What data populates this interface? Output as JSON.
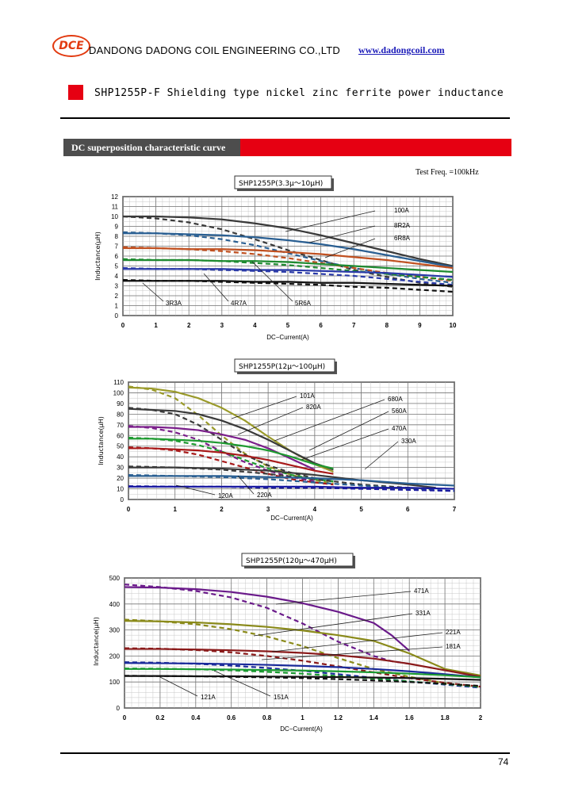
{
  "header": {
    "logo_text": "DCE",
    "company": "DANDONG DADONG COIL ENGINEERING CO.,LTD",
    "website": "www.dadongcoil.com"
  },
  "product_title": "SHP1255P-F  Shielding type nickel zinc ferrite power inductance",
  "section_title": "DC superposition characteristic curve",
  "test_freq": "Test  Freq. =100kHz",
  "page_number": "74",
  "colors": {
    "red": "#e60012",
    "dark": "#4d4d4d"
  },
  "chart_data": [
    {
      "type": "line",
      "title": "SHP1255P(3.3μ～10μH)",
      "xlabel": "DC−Current(A)",
      "ylabel": "Inductance(μH)",
      "xlim": [
        0,
        10
      ],
      "ylim": [
        0,
        12
      ],
      "xticks": [
        "0",
        "1",
        "2",
        "3",
        "4",
        "5",
        "6",
        "7",
        "8",
        "9",
        "10"
      ],
      "yticks": [
        "0",
        "1",
        "2",
        "3",
        "4",
        "5",
        "6",
        "7",
        "8",
        "9",
        "10",
        "11",
        "12"
      ],
      "series": [
        {
          "name": "100A",
          "color": "#3a3a3a",
          "x": [
            0,
            1,
            2,
            3,
            4,
            5,
            6,
            7,
            8,
            9,
            10
          ],
          "solid": [
            10,
            10,
            9.9,
            9.7,
            9.3,
            8.8,
            8.1,
            7.3,
            6.5,
            5.7,
            5.0
          ],
          "dashed": [
            10,
            9.8,
            9.4,
            8.7,
            7.7,
            6.6,
            5.6,
            4.6,
            3.9,
            3.3,
            2.9
          ]
        },
        {
          "name": "8R2A",
          "color": "#2a5f92",
          "x": [
            0,
            1,
            2,
            3,
            4,
            5,
            6,
            7,
            8,
            9,
            10
          ],
          "solid": [
            8.3,
            8.3,
            8.2,
            8.1,
            7.9,
            7.6,
            7.2,
            6.7,
            6.1,
            5.5,
            4.9
          ],
          "dashed": [
            8.4,
            8.3,
            8.1,
            7.7,
            7.1,
            6.3,
            5.5,
            4.8,
            4.2,
            3.7,
            3.3
          ]
        },
        {
          "name": "6R8A",
          "color": "#c05020",
          "x": [
            0,
            1,
            2,
            3,
            4,
            5,
            6,
            7,
            8,
            9,
            10
          ],
          "solid": [
            6.8,
            6.8,
            6.7,
            6.7,
            6.6,
            6.4,
            6.2,
            5.9,
            5.6,
            5.2,
            4.8
          ],
          "dashed": [
            6.9,
            6.8,
            6.7,
            6.5,
            6.2,
            5.8,
            5.3,
            4.8,
            4.3,
            3.9,
            3.5
          ]
        },
        {
          "name": "5R6A",
          "color": "#1e8a30",
          "x": [
            0,
            1,
            2,
            3,
            4,
            5,
            6,
            7,
            8,
            9,
            10
          ],
          "solid": [
            5.6,
            5.6,
            5.6,
            5.5,
            5.5,
            5.4,
            5.2,
            5.0,
            4.8,
            4.6,
            4.4
          ],
          "dashed": [
            5.7,
            5.6,
            5.6,
            5.5,
            5.3,
            5.1,
            4.8,
            4.5,
            4.2,
            3.9,
            3.6
          ]
        },
        {
          "name": "4R7A",
          "color": "#2a3aa8",
          "x": [
            0,
            1,
            2,
            3,
            4,
            5,
            6,
            7,
            8,
            9,
            10
          ],
          "solid": [
            4.7,
            4.7,
            4.7,
            4.7,
            4.6,
            4.6,
            4.5,
            4.4,
            4.3,
            4.1,
            3.9
          ],
          "dashed": [
            4.8,
            4.7,
            4.7,
            4.6,
            4.5,
            4.4,
            4.2,
            4.0,
            3.7,
            3.4,
            3.1
          ]
        },
        {
          "name": "3R3A",
          "color": "#111111",
          "x": [
            0,
            1,
            2,
            3,
            4,
            5,
            6,
            7,
            8,
            9,
            10
          ],
          "solid": [
            3.5,
            3.5,
            3.5,
            3.5,
            3.4,
            3.4,
            3.3,
            3.3,
            3.2,
            3.1,
            3.0
          ],
          "dashed": [
            3.6,
            3.5,
            3.5,
            3.4,
            3.3,
            3.2,
            3.1,
            2.9,
            2.8,
            2.6,
            2.4
          ]
        }
      ]
    },
    {
      "type": "line",
      "title": "SHP1255P(12μ～100μH)",
      "xlabel": "DC−Current(A)",
      "ylabel": "Inductance(μH)",
      "xlim": [
        0,
        7
      ],
      "ylim": [
        0,
        110
      ],
      "xticks": [
        "0",
        "1",
        "2",
        "3",
        "4",
        "5",
        "6",
        "7"
      ],
      "yticks": [
        "0",
        "10",
        "20",
        "30",
        "40",
        "50",
        "60",
        "70",
        "80",
        "90",
        "100",
        "110"
      ],
      "series": [
        {
          "name": "101A",
          "color": "#9a9a2a",
          "x": [
            0,
            0.5,
            1,
            1.5,
            2,
            2.5,
            3,
            3.5,
            4,
            4.4
          ],
          "solid": [
            105,
            104,
            101,
            95,
            86,
            74,
            59,
            45,
            33,
            26
          ],
          "dashed": [
            106,
            103,
            95,
            79,
            60,
            43,
            31,
            23,
            18,
            15
          ]
        },
        {
          "name": "820A",
          "color": "#3a3a3a",
          "x": [
            0,
            0.5,
            1,
            1.5,
            2,
            2.5,
            3,
            3.5,
            4,
            4.4
          ],
          "solid": [
            85,
            84,
            83,
            80,
            74,
            66,
            56,
            45,
            34,
            28
          ],
          "dashed": [
            86,
            84,
            80,
            70,
            56,
            42,
            32,
            25,
            20,
            17
          ]
        },
        {
          "name": "680A",
          "color": "#7a1e8a",
          "x": [
            0,
            0.5,
            1,
            1.5,
            2,
            2.5,
            3,
            3.5,
            4
          ],
          "solid": [
            68,
            68,
            67,
            65,
            61,
            56,
            48,
            38,
            28
          ],
          "dashed": [
            69,
            67,
            63,
            56,
            45,
            35,
            27,
            21,
            17
          ]
        },
        {
          "name": "560A",
          "color": "#1e9a30",
          "x": [
            0,
            0.5,
            1,
            1.5,
            2,
            2.5,
            3,
            3.5,
            4,
            4.4
          ],
          "solid": [
            57,
            57,
            56,
            55,
            53,
            50,
            46,
            40,
            33,
            29
          ],
          "dashed": [
            58,
            57,
            55,
            51,
            45,
            37,
            29,
            23,
            19,
            17
          ]
        },
        {
          "name": "470A",
          "color": "#a81a1a",
          "x": [
            0,
            0.5,
            1,
            1.5,
            2,
            2.5,
            3,
            3.5,
            4,
            4.4
          ],
          "solid": [
            48,
            48,
            47,
            46,
            44,
            41,
            37,
            32,
            27,
            24
          ],
          "dashed": [
            49,
            48,
            46,
            42,
            36,
            30,
            24,
            19,
            16,
            14
          ]
        },
        {
          "name": "330A",
          "color": "#3a3a3a",
          "x": [
            0,
            1,
            2,
            3,
            4,
            5,
            6,
            6.6
          ],
          "solid": [
            30,
            30,
            29,
            27,
            23,
            18,
            14,
            11
          ],
          "dashed": [
            31,
            30,
            28,
            24,
            19,
            14,
            11,
            9
          ]
        },
        {
          "name": "220A",
          "color": "#2a5f92",
          "x": [
            0,
            1,
            2,
            3,
            4,
            5,
            6,
            7
          ],
          "solid": [
            22,
            22,
            22,
            21,
            20,
            18,
            15,
            13
          ],
          "dashed": [
            23,
            22,
            21,
            19,
            16,
            13,
            10,
            8
          ]
        },
        {
          "name": "120A",
          "color": "#1a1aa0",
          "x": [
            0,
            1,
            2,
            3,
            4,
            5,
            6,
            7
          ],
          "solid": [
            12,
            12,
            12,
            12,
            12,
            11,
            11,
            10
          ],
          "dashed": [
            12.5,
            12,
            12,
            11,
            11,
            10,
            9,
            8
          ]
        }
      ]
    },
    {
      "type": "line",
      "title": "SHP1255P(120μ～470μH)",
      "xlabel": "DC−Current(A)",
      "ylabel": "Inductance(μH)",
      "xlim": [
        0,
        2
      ],
      "ylim": [
        0,
        500
      ],
      "xticks": [
        "0",
        "0.2",
        "0.4",
        "0.6",
        "0.8",
        "1",
        "1.2",
        "1.4",
        "1.6",
        "1.8",
        "2"
      ],
      "yticks": [
        "0",
        "100",
        "200",
        "300",
        "400",
        "500"
      ],
      "series": [
        {
          "name": "471A",
          "color": "#6a1a8a",
          "x": [
            0,
            0.2,
            0.4,
            0.6,
            0.8,
            1.0,
            1.2,
            1.4,
            1.5,
            1.6
          ],
          "solid": [
            465,
            463,
            457,
            446,
            428,
            403,
            370,
            327,
            280,
            220
          ],
          "dashed": [
            475,
            465,
            450,
            425,
            385,
            325,
            255,
            200,
            180,
            170
          ]
        },
        {
          "name": "331A",
          "color": "#8a8a1a",
          "x": [
            0,
            0.2,
            0.4,
            0.6,
            0.8,
            1.0,
            1.2,
            1.4,
            1.6,
            1.8,
            2.0
          ],
          "solid": [
            335,
            333,
            329,
            322,
            312,
            298,
            280,
            258,
            210,
            150,
            125
          ],
          "dashed": [
            340,
            333,
            322,
            303,
            275,
            238,
            192,
            150,
            120,
            95,
            80
          ]
        },
        {
          "name": "221A",
          "color": "#8a1a1a",
          "x": [
            0,
            0.2,
            0.4,
            0.6,
            0.8,
            1.0,
            1.2,
            1.4,
            1.6,
            1.8,
            2.0
          ],
          "solid": [
            227,
            227,
            225,
            222,
            218,
            212,
            203,
            190,
            170,
            145,
            120
          ],
          "dashed": [
            230,
            228,
            223,
            214,
            200,
            182,
            160,
            137,
            115,
            97,
            82
          ]
        },
        {
          "name": "181A",
          "color": "#1a2a9a",
          "x": [
            0,
            0.2,
            0.4,
            0.6,
            0.8,
            1.0,
            1.2,
            1.4,
            1.6,
            1.8,
            2.0
          ],
          "solid": [
            173,
            172,
            171,
            169,
            166,
            162,
            157,
            150,
            141,
            130,
            118
          ],
          "dashed": [
            176,
            174,
            170,
            163,
            154,
            143,
            130,
            116,
            102,
            90,
            78
          ]
        },
        {
          "name": "151A",
          "color": "#1a9a30",
          "x": [
            0,
            0.2,
            0.4,
            0.6,
            0.8,
            1.0,
            1.2,
            1.4,
            1.6,
            1.8,
            2.0
          ],
          "solid": [
            150,
            150,
            149,
            148,
            146,
            144,
            141,
            137,
            132,
            126,
            118
          ],
          "dashed": [
            152,
            151,
            149,
            145,
            139,
            132,
            123,
            113,
            102,
            92,
            82
          ]
        },
        {
          "name": "121A",
          "color": "#111111",
          "x": [
            0,
            0.2,
            0.4,
            0.6,
            0.8,
            1.0,
            1.2,
            1.4,
            1.6,
            1.8,
            2.0
          ],
          "solid": [
            123,
            123,
            122,
            122,
            121,
            120,
            119,
            117,
            115,
            112,
            108
          ],
          "dashed": [
            124,
            123,
            122,
            120,
            118,
            115,
            111,
            106,
            100,
            93,
            85
          ]
        }
      ]
    }
  ]
}
